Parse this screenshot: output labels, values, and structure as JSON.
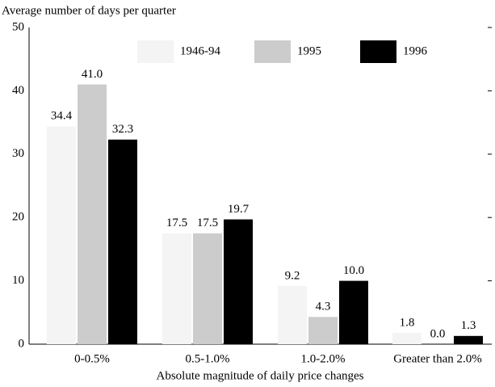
{
  "chart_data": {
    "type": "bar",
    "y_axis_label": "Average number of days per quarter",
    "x_axis_label": "Absolute magnitude of daily price changes",
    "categories": [
      "0-0.5%",
      "0.5-1.0%",
      "1.0-2.0%",
      "Greater than 2.0%"
    ],
    "series": [
      {
        "name": "1946-94",
        "color": "#f4f4f4",
        "values": [
          34.4,
          17.5,
          9.2,
          1.8
        ],
        "value_labels": [
          "34.4",
          "17.5",
          "9.2",
          "1.8"
        ]
      },
      {
        "name": "1995",
        "color": "#cccccc",
        "values": [
          41,
          17.5,
          4.3,
          0
        ],
        "value_labels": [
          "41.0",
          "17.5",
          "4.3",
          "0.0"
        ]
      },
      {
        "name": "1996",
        "color": "#000000",
        "values": [
          32.3,
          19.7,
          10,
          1.3
        ],
        "value_labels": [
          "32.3",
          "19.7",
          "10.0",
          "1.3"
        ]
      }
    ],
    "ylim": [
      0,
      50
    ],
    "yticks": [
      0,
      10,
      20,
      30,
      40,
      50
    ],
    "legend": "top"
  }
}
